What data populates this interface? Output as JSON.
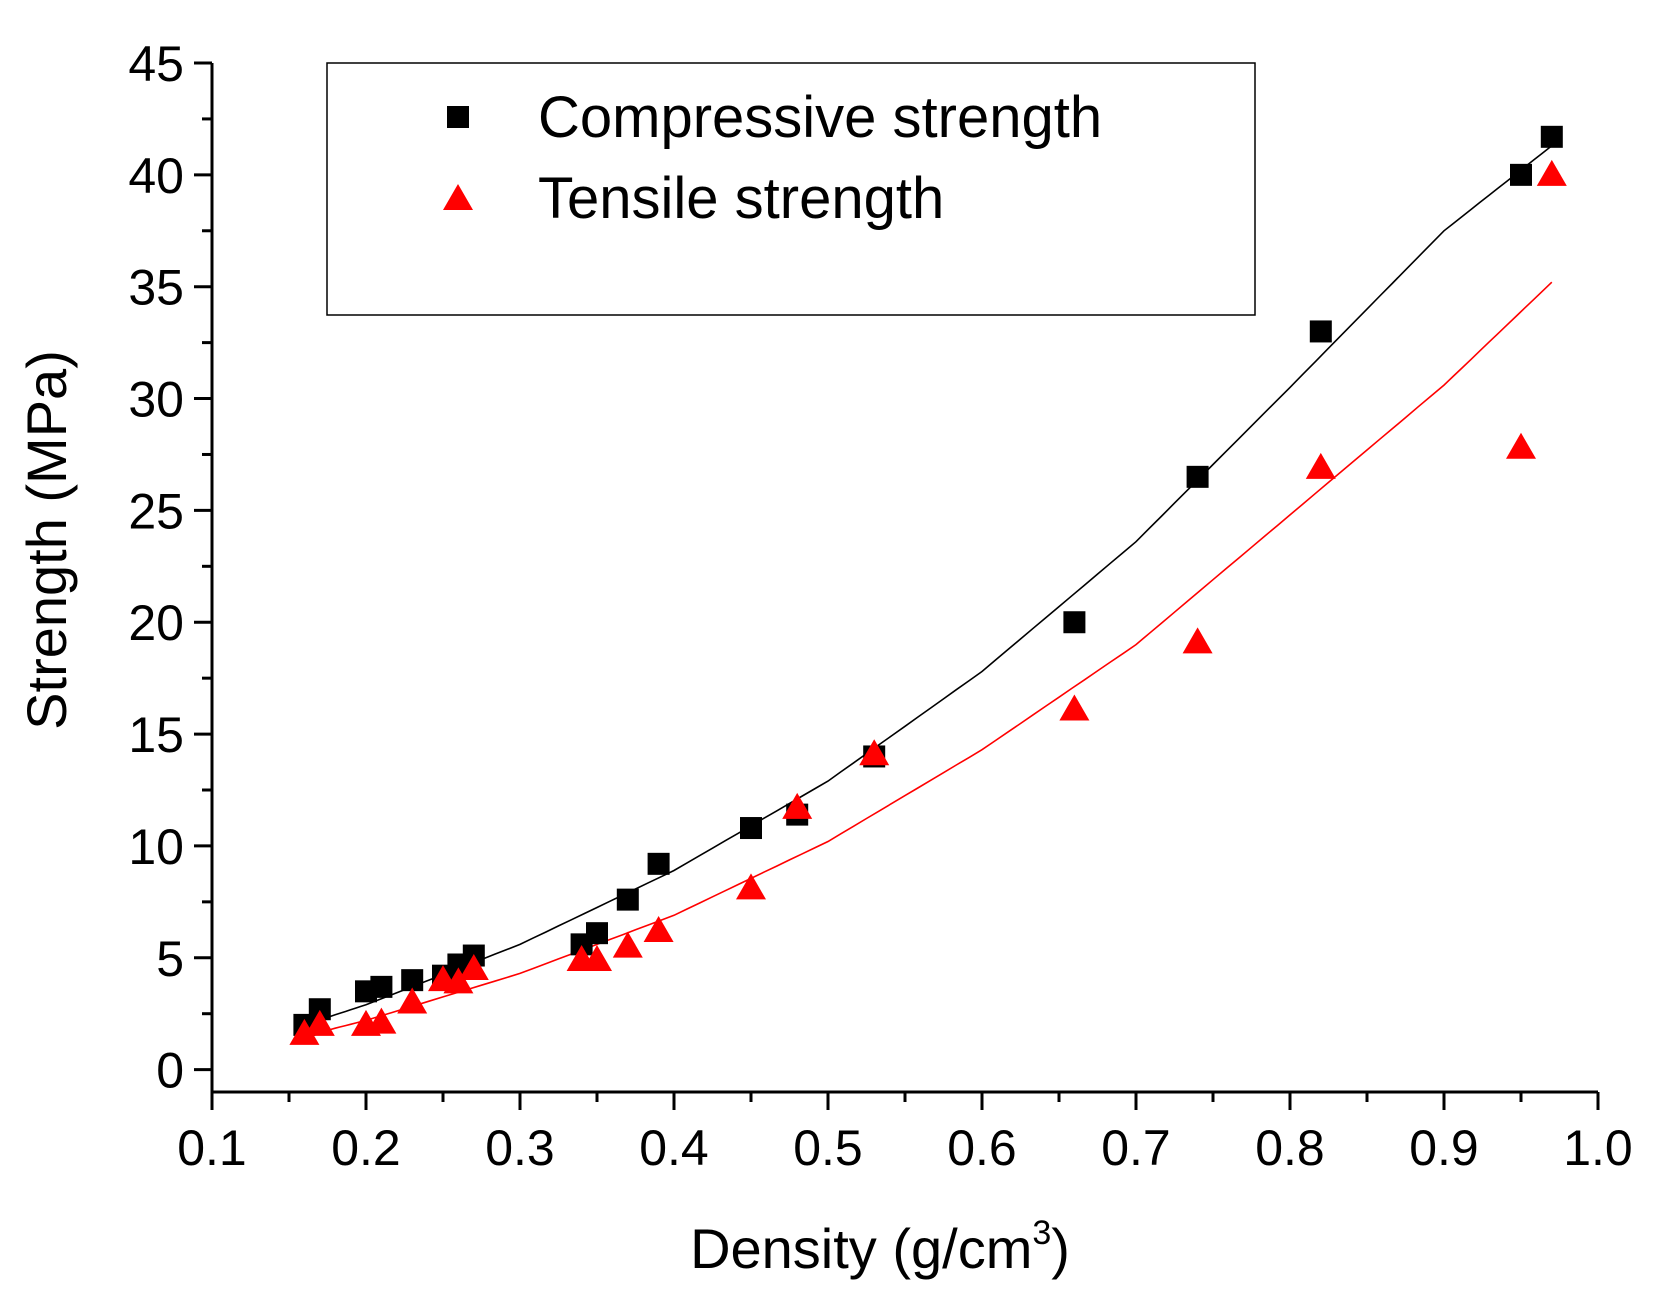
{
  "chart_data": {
    "type": "scatter",
    "xlabel": "Density (g/cm",
    "xlabel_sup": "3",
    "xlabel_suffix": ")",
    "ylabel": "Strength (MPa)",
    "xlim": [
      0.1,
      1.0
    ],
    "ylim": [
      -1,
      45
    ],
    "x_ticks": [
      0.1,
      0.2,
      0.3,
      0.4,
      0.5,
      0.6,
      0.7,
      0.8,
      0.9,
      1.0
    ],
    "x_tick_labels": [
      "0.1",
      "0.2",
      "0.3",
      "0.4",
      "0.5",
      "0.6",
      "0.7",
      "0.8",
      "0.9",
      "1.0"
    ],
    "y_ticks": [
      0,
      5,
      10,
      15,
      20,
      25,
      30,
      35,
      40,
      45
    ],
    "y_tick_labels": [
      "0",
      "5",
      "10",
      "15",
      "20",
      "25",
      "30",
      "35",
      "40",
      "45"
    ],
    "grid": false,
    "legend_position": "top-left",
    "series": [
      {
        "name": "Compressive strength",
        "marker": "square",
        "color": "#000000",
        "x": [
          0.16,
          0.17,
          0.2,
          0.21,
          0.23,
          0.25,
          0.26,
          0.27,
          0.34,
          0.35,
          0.37,
          0.39,
          0.45,
          0.48,
          0.53,
          0.66,
          0.74,
          0.82,
          0.95,
          0.97
        ],
        "y": [
          2.0,
          2.7,
          3.5,
          3.7,
          4.0,
          4.2,
          4.7,
          5.1,
          5.6,
          6.1,
          7.6,
          9.2,
          10.8,
          11.4,
          14.0,
          20.0,
          26.5,
          33.0,
          40.0,
          41.7
        ],
        "fit": {
          "x": [
            0.16,
            0.2,
            0.3,
            0.4,
            0.5,
            0.6,
            0.7,
            0.8,
            0.9,
            0.97
          ],
          "y": [
            2.0,
            2.9,
            5.6,
            8.9,
            12.9,
            17.8,
            23.6,
            30.5,
            37.5,
            41.3
          ]
        }
      },
      {
        "name": "Tensile strength",
        "marker": "triangle",
        "color": "#ff0000",
        "x": [
          0.16,
          0.17,
          0.2,
          0.21,
          0.23,
          0.25,
          0.26,
          0.27,
          0.34,
          0.35,
          0.37,
          0.39,
          0.45,
          0.48,
          0.53,
          0.66,
          0.74,
          0.82,
          0.95,
          0.97
        ],
        "y": [
          1.6,
          2.0,
          2.0,
          2.1,
          3.0,
          4.0,
          3.9,
          4.5,
          4.9,
          4.9,
          5.5,
          6.2,
          8.1,
          11.7,
          14.1,
          16.1,
          19.1,
          26.9,
          27.8,
          40.0
        ],
        "fit": {
          "x": [
            0.16,
            0.2,
            0.3,
            0.4,
            0.5,
            0.6,
            0.7,
            0.8,
            0.9,
            0.97
          ],
          "y": [
            1.5,
            2.2,
            4.3,
            6.9,
            10.2,
            14.3,
            19.0,
            24.8,
            30.6,
            35.2
          ]
        }
      }
    ]
  }
}
